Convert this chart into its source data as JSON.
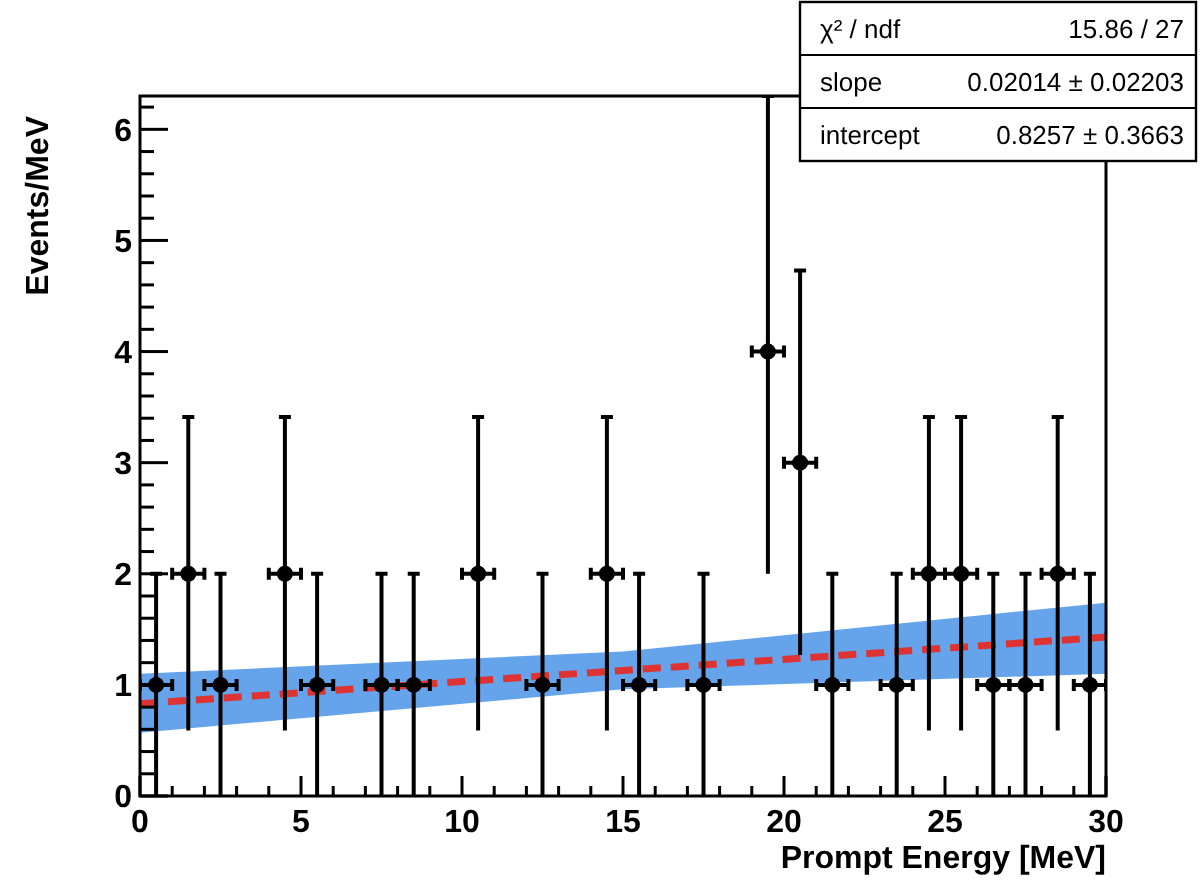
{
  "chart_data": {
    "type": "scatter",
    "xlabel": "Prompt Energy [MeV]",
    "ylabel": "Events/MeV",
    "xlim": [
      0,
      30
    ],
    "ylim": [
      0,
      6.3
    ],
    "xticks": [
      0,
      {
        "value": 1,
        "label": null
      },
      {
        "value": 2,
        "label": null
      },
      {
        "value": 3,
        "label": null
      },
      {
        "value": 4,
        "label": null
      },
      5,
      {
        "value": 6,
        "label": null
      },
      {
        "value": 7,
        "label": null
      },
      {
        "value": 8,
        "label": null
      },
      {
        "value": 9,
        "label": null
      },
      10,
      {
        "value": 11,
        "label": null
      },
      {
        "value": 12,
        "label": null
      },
      {
        "value": 13,
        "label": null
      },
      {
        "value": 14,
        "label": null
      },
      15,
      {
        "value": 16,
        "label": null
      },
      {
        "value": 17,
        "label": null
      },
      {
        "value": 18,
        "label": null
      },
      {
        "value": 19,
        "label": null
      },
      20,
      {
        "value": 21,
        "label": null
      },
      {
        "value": 22,
        "label": null
      },
      {
        "value": 23,
        "label": null
      },
      {
        "value": 24,
        "label": null
      },
      25,
      {
        "value": 26,
        "label": null
      },
      {
        "value": 27,
        "label": null
      },
      {
        "value": 28,
        "label": null
      },
      {
        "value": 29,
        "label": null
      },
      30
    ],
    "yticks": [
      0,
      {
        "value": 0.2,
        "label": null
      },
      {
        "value": 0.4,
        "label": null
      },
      {
        "value": 0.6,
        "label": null
      },
      {
        "value": 0.8,
        "label": null
      },
      1,
      {
        "value": 1.2,
        "label": null
      },
      {
        "value": 1.4,
        "label": null
      },
      {
        "value": 1.6,
        "label": null
      },
      {
        "value": 1.8,
        "label": null
      },
      2,
      {
        "value": 2.2,
        "label": null
      },
      {
        "value": 2.4,
        "label": null
      },
      {
        "value": 2.6,
        "label": null
      },
      {
        "value": 2.8,
        "label": null
      },
      3,
      {
        "value": 3.2,
        "label": null
      },
      {
        "value": 3.4,
        "label": null
      },
      {
        "value": 3.6,
        "label": null
      },
      {
        "value": 3.8,
        "label": null
      },
      4,
      {
        "value": 4.2,
        "label": null
      },
      {
        "value": 4.4,
        "label": null
      },
      {
        "value": 4.6,
        "label": null
      },
      {
        "value": 4.8,
        "label": null
      },
      5,
      {
        "value": 5.2,
        "label": null
      },
      {
        "value": 5.4,
        "label": null
      },
      {
        "value": 5.6,
        "label": null
      },
      {
        "value": 5.8,
        "label": null
      },
      6,
      {
        "value": 6.2,
        "label": null
      }
    ],
    "grid": false,
    "series": [
      {
        "type": "scatter",
        "color": "#000000",
        "marker": "circle",
        "x": [
          0.5,
          1.5,
          2.5,
          4.5,
          5.5,
          7.5,
          8.5,
          10.5,
          12.5,
          14.5,
          15.5,
          17.5,
          19.5,
          20.5,
          21.5,
          23.5,
          24.5,
          25.5,
          26.5,
          27.5,
          28.5,
          29.5
        ],
        "values": [
          1,
          2,
          1,
          2,
          1,
          1,
          1,
          2,
          1,
          2,
          1,
          1,
          4,
          3,
          1,
          1,
          2,
          2,
          1,
          1,
          2,
          1
        ],
        "errors": [
          1,
          1.41,
          1,
          1.41,
          1,
          1,
          1,
          1.41,
          1,
          1.41,
          1,
          1,
          [
            2,
            6.3
          ],
          1.73,
          1,
          1,
          1.41,
          1.41,
          1,
          1,
          1.41,
          1
        ],
        "xerrors": [
          0.5,
          0.5,
          0.5,
          0.5,
          0.5,
          0.5,
          0.5,
          0.5,
          0.5,
          0.5,
          0.5,
          0.5,
          0.5,
          0.5,
          0.5,
          0.5,
          0.5,
          0.5,
          0.5,
          0.5,
          0.5,
          0.5
        ]
      },
      {
        "type": "line",
        "color": "#dd3333",
        "line_style": "dashed",
        "marker": "none",
        "x": [
          0,
          15,
          30
        ],
        "values": [
          0.83,
          1.13,
          1.43
        ],
        "lower": [
          0.57,
          0.96,
          1.1
        ],
        "upper": [
          1.1,
          1.3,
          1.74
        ]
      }
    ],
    "annotations": [
      "χ² / ndf",
      "15.86 / 27",
      "slope",
      "0.02014 ± 0.02203",
      "intercept",
      "0.8257 ± 0.3663"
    ]
  }
}
